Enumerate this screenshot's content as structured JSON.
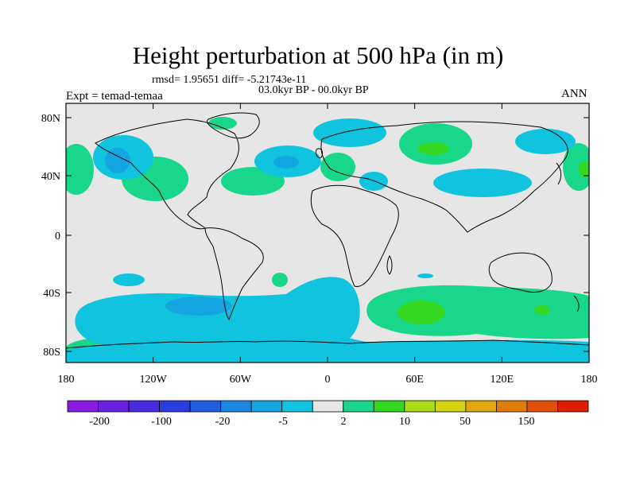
{
  "title": "Height perturbation at 500 hPa (in m)",
  "stats": "rmsd= 1.95651 diff= -5.21743e-11",
  "period": "03.0kyr BP - 00.0kyr BP",
  "experiment": "Expt = temad-temaa",
  "season": "ANN",
  "lat_ticks": [
    "80N",
    "40N",
    "0",
    "40S",
    "80S"
  ],
  "lon_ticks": [
    "180",
    "120W",
    "60W",
    "0",
    "60E",
    "120E",
    "180"
  ],
  "colorbar": {
    "labels": [
      "-200",
      "-100",
      "-20",
      "-5",
      "2",
      "10",
      "50",
      "150"
    ],
    "colors": [
      "#8a1ce0",
      "#6a20e0",
      "#4a2ae0",
      "#2a3ee0",
      "#2060e0",
      "#1a86e0",
      "#14a6e0",
      "#10c4e0",
      "#e6e6e6",
      "#18d68a",
      "#34d820",
      "#a8dc14",
      "#d4d410",
      "#e0a80c",
      "#e07c0a",
      "#e05008",
      "#e01c04"
    ]
  },
  "colors": {
    "background": "#e6e6e6",
    "neg_small": "#10c4e0",
    "neg_medium": "#14a6e0",
    "pos_small": "#18d68a",
    "pos_medium": "#34d820"
  }
}
